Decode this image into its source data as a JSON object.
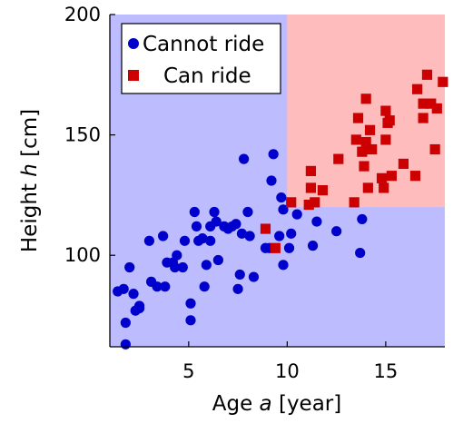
{
  "chart_data": {
    "type": "scatter",
    "title": "",
    "xlabel": "Age a [year]",
    "ylabel": "Height h [cm]",
    "xlabel_parts": [
      "Age ",
      "a",
      " [year]"
    ],
    "ylabel_parts": [
      "Height ",
      "h",
      " [cm]"
    ],
    "xlim": [
      1,
      18
    ],
    "ylim": [
      62,
      200
    ],
    "xticks": [
      5,
      10,
      15
    ],
    "yticks": [
      100,
      150,
      200
    ],
    "grid": false,
    "legend": {
      "position": "top-left"
    },
    "background_regions": [
      {
        "label": "Cannot ride",
        "x": [
          1,
          18
        ],
        "y": [
          62,
          200
        ],
        "color": "#bcbcff"
      },
      {
        "label": "Can ride",
        "x": [
          10,
          18
        ],
        "y": [
          120,
          200
        ],
        "color": "#ffbcbc"
      }
    ],
    "series": [
      {
        "name": "Cannot ride",
        "marker": "circle",
        "color": "#0000cc",
        "points": [
          [
            1.4,
            85
          ],
          [
            1.7,
            86
          ],
          [
            2.0,
            95
          ],
          [
            2.2,
            84
          ],
          [
            1.8,
            72
          ],
          [
            1.8,
            63
          ],
          [
            2.3,
            77
          ],
          [
            2.5,
            79
          ],
          [
            2.5,
            78
          ],
          [
            3.0,
            106
          ],
          [
            3.1,
            89
          ],
          [
            3.4,
            87
          ],
          [
            3.7,
            108
          ],
          [
            3.8,
            87
          ],
          [
            3.9,
            97
          ],
          [
            4.2,
            97
          ],
          [
            4.3,
            95
          ],
          [
            4.4,
            100
          ],
          [
            4.7,
            95
          ],
          [
            4.8,
            106
          ],
          [
            5.1,
            80
          ],
          [
            5.1,
            73
          ],
          [
            5.3,
            118
          ],
          [
            5.4,
            112
          ],
          [
            5.5,
            106
          ],
          [
            5.7,
            107
          ],
          [
            5.8,
            87
          ],
          [
            5.9,
            96
          ],
          [
            6.1,
            112
          ],
          [
            6.1,
            106
          ],
          [
            6.3,
            118
          ],
          [
            6.4,
            114
          ],
          [
            6.5,
            98
          ],
          [
            6.8,
            112
          ],
          [
            7.0,
            111
          ],
          [
            7.2,
            112
          ],
          [
            7.4,
            113
          ],
          [
            7.5,
            86
          ],
          [
            7.6,
            92
          ],
          [
            7.7,
            109
          ],
          [
            7.8,
            140
          ],
          [
            8.0,
            118
          ],
          [
            8.1,
            108
          ],
          [
            8.3,
            91
          ],
          [
            8.9,
            103
          ],
          [
            9.1,
            103
          ],
          [
            9.2,
            131
          ],
          [
            9.3,
            142
          ],
          [
            9.6,
            108
          ],
          [
            9.8,
            96
          ],
          [
            9.7,
            124
          ],
          [
            9.8,
            119
          ],
          [
            10.1,
            103
          ],
          [
            10.2,
            109
          ],
          [
            10.5,
            117
          ],
          [
            11.3,
            104
          ],
          [
            11.5,
            114
          ],
          [
            12.5,
            110
          ],
          [
            13.7,
            101
          ],
          [
            13.8,
            115
          ]
        ]
      },
      {
        "name": "Can ride",
        "marker": "square",
        "color": "#cc0000",
        "points": [
          [
            8.9,
            111
          ],
          [
            9.4,
            103
          ],
          [
            10.2,
            122
          ],
          [
            11.1,
            121
          ],
          [
            11.2,
            128
          ],
          [
            11.2,
            135
          ],
          [
            11.4,
            122
          ],
          [
            11.8,
            127
          ],
          [
            12.6,
            140
          ],
          [
            13.4,
            122
          ],
          [
            13.5,
            148
          ],
          [
            13.6,
            157
          ],
          [
            13.8,
            143
          ],
          [
            13.9,
            137
          ],
          [
            14.0,
            165
          ],
          [
            14.0,
            147
          ],
          [
            14.1,
            128
          ],
          [
            14.2,
            152
          ],
          [
            14.3,
            144
          ],
          [
            14.8,
            132
          ],
          [
            14.9,
            128
          ],
          [
            15.0,
            160
          ],
          [
            15.0,
            148
          ],
          [
            15.1,
            155
          ],
          [
            15.2,
            156
          ],
          [
            15.3,
            133
          ],
          [
            15.9,
            138
          ],
          [
            16.5,
            133
          ],
          [
            16.6,
            169
          ],
          [
            16.9,
            157
          ],
          [
            16.9,
            163
          ],
          [
            17.1,
            175
          ],
          [
            17.3,
            163
          ],
          [
            17.5,
            144
          ],
          [
            17.6,
            161
          ],
          [
            17.9,
            172
          ]
        ]
      }
    ]
  }
}
